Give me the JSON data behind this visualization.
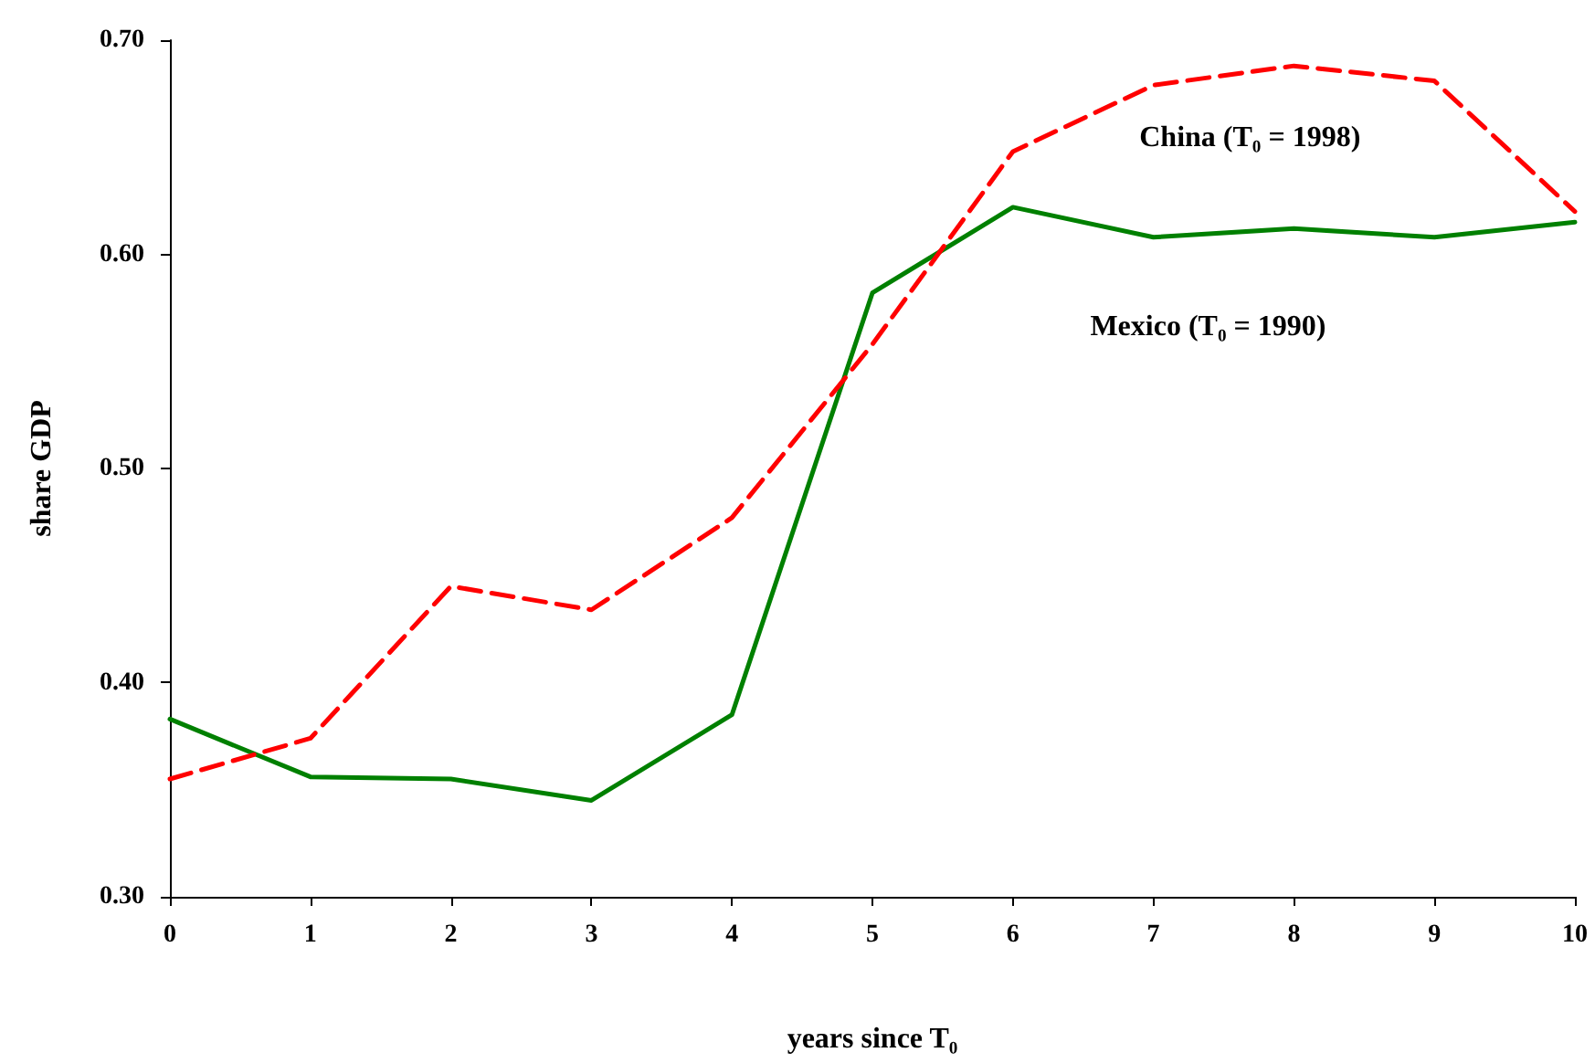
{
  "chart_data": {
    "type": "line",
    "xlabel": "years since T₀",
    "ylabel": "share GDP",
    "x": [
      0,
      1,
      2,
      3,
      4,
      5,
      6,
      7,
      8,
      9,
      10
    ],
    "series": [
      {
        "name": "Mexico (T₀ = 1990)",
        "color": "#008000",
        "line_style": "solid",
        "values": [
          0.383,
          0.356,
          0.355,
          0.345,
          0.385,
          0.582,
          0.622,
          0.608,
          0.612,
          0.608,
          0.615
        ]
      },
      {
        "name": "China (T₀ = 1998)",
        "color": "#ff0000",
        "line_style": "dashed",
        "values": [
          0.355,
          0.374,
          0.445,
          0.434,
          0.477,
          0.558,
          0.648,
          0.679,
          0.688,
          0.681,
          0.62
        ]
      }
    ],
    "xlim": [
      0,
      10
    ],
    "xticks": [
      0,
      1,
      2,
      3,
      4,
      5,
      6,
      7,
      8,
      9,
      10
    ],
    "ylim": [
      0.3,
      0.7
    ],
    "yticks": [
      {
        "value": 0.3,
        "label": "0.30"
      },
      {
        "value": 0.4,
        "label": "0.40"
      },
      {
        "value": 0.5,
        "label": "0.50"
      },
      {
        "value": 0.6,
        "label": "0.60"
      },
      {
        "value": 0.7,
        "label": "0.70"
      }
    ],
    "grid": false,
    "legend": false,
    "marker": "none"
  }
}
